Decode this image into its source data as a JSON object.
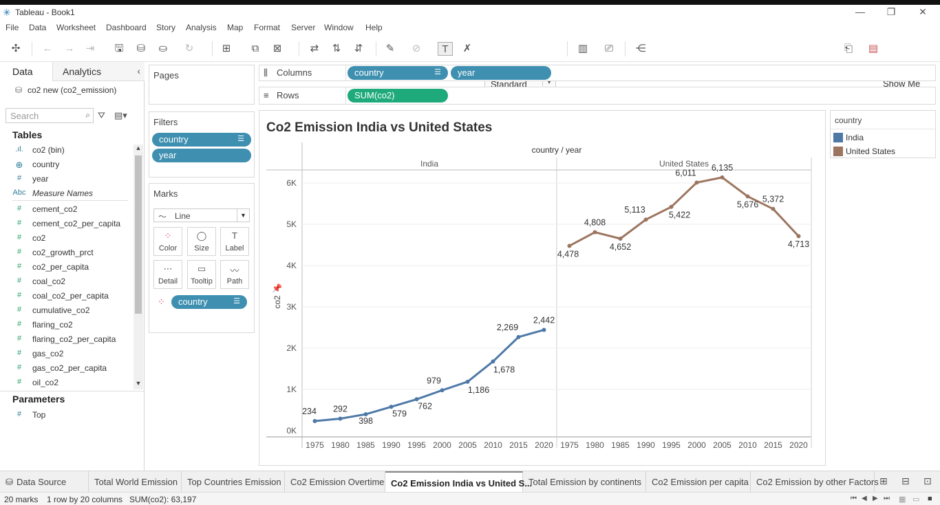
{
  "window": {
    "title": "Tableau - Book1"
  },
  "menu": [
    "File",
    "Data",
    "Worksheet",
    "Dashboard",
    "Story",
    "Analysis",
    "Map",
    "Format",
    "Server",
    "Window",
    "Help"
  ],
  "toolbar": {
    "mark_size_select": "Standard",
    "show_me": "Show Me"
  },
  "left": {
    "tab_data": "Data",
    "tab_analytics": "Analytics",
    "datasource": "co2 new (co2_emission)",
    "search_placeholder": "Search",
    "tables_title": "Tables",
    "fields": [
      {
        "icon": ".ıl.",
        "name": "co2 (bin)"
      },
      {
        "icon": "⊕",
        "name": "country"
      },
      {
        "icon": "#",
        "name": "year"
      },
      {
        "icon": "Abc",
        "name": "Measure Names"
      },
      {
        "icon": "#",
        "name": "cement_co2"
      },
      {
        "icon": "#",
        "name": "cement_co2_per_capita"
      },
      {
        "icon": "#",
        "name": "co2"
      },
      {
        "icon": "#",
        "name": "co2_growth_prct"
      },
      {
        "icon": "#",
        "name": "co2_per_capita"
      },
      {
        "icon": "#",
        "name": "coal_co2"
      },
      {
        "icon": "#",
        "name": "coal_co2_per_capita"
      },
      {
        "icon": "#",
        "name": "cumulative_co2"
      },
      {
        "icon": "#",
        "name": "flaring_co2"
      },
      {
        "icon": "#",
        "name": "flaring_co2_per_capita"
      },
      {
        "icon": "#",
        "name": "gas_co2"
      },
      {
        "icon": "#",
        "name": "gas_co2_per_capita"
      },
      {
        "icon": "#",
        "name": "oil_co2"
      }
    ],
    "parameters_title": "Parameters",
    "parameters": [
      {
        "icon": "#",
        "name": "Top"
      }
    ]
  },
  "pages": {
    "title": "Pages"
  },
  "filters": {
    "title": "Filters",
    "pills": [
      "country",
      "year"
    ]
  },
  "marks": {
    "title": "Marks",
    "type": "Line",
    "buttons": [
      {
        "icon": "⁘",
        "label": "Color"
      },
      {
        "icon": "◯",
        "label": "Size"
      },
      {
        "icon": "T",
        "label": "Label"
      },
      {
        "icon": "⋯",
        "label": "Detail"
      },
      {
        "icon": "▭",
        "label": "Tooltip"
      },
      {
        "icon": "〰",
        "label": "Path"
      }
    ],
    "color_pill": "country"
  },
  "shelves": {
    "columns_label": "Columns",
    "rows_label": "Rows",
    "columns": [
      "country",
      "year"
    ],
    "rows": [
      "SUM(co2)"
    ]
  },
  "sheet": {
    "title": "Co2 Emission India vs United States",
    "header": "country / year"
  },
  "legend": {
    "title": "country",
    "items": [
      {
        "name": "India",
        "color": "#4e79a7"
      },
      {
        "name": "United States",
        "color": "#9c755f"
      }
    ]
  },
  "chart_data": {
    "type": "line",
    "title": "Co2 Emission India vs United States",
    "ylabel": "co2",
    "column_header": "country / year",
    "ylim": [
      0,
      6500
    ],
    "y_ticks": [
      0,
      1000,
      2000,
      3000,
      4000,
      5000,
      6000
    ],
    "y_tick_labels": [
      "0K",
      "1K",
      "2K",
      "3K",
      "4K",
      "5K",
      "6K"
    ],
    "grid": true,
    "panes": [
      {
        "name": "India",
        "color": "#4e79a7",
        "x": [
          1975,
          1980,
          1985,
          1990,
          1995,
          2000,
          2005,
          2010,
          2015,
          2020
        ],
        "values": [
          234,
          292,
          398,
          579,
          762,
          979,
          1186,
          1678,
          2269,
          2442
        ],
        "labels": [
          "234",
          "292",
          "398",
          "579",
          "762",
          "979",
          "1,186",
          "1,678",
          "2,269",
          "2,442"
        ]
      },
      {
        "name": "United States",
        "color": "#9c755f",
        "x": [
          1975,
          1980,
          1985,
          1990,
          1995,
          2000,
          2005,
          2010,
          2015,
          2020
        ],
        "values": [
          4478,
          4808,
          4652,
          5113,
          5422,
          6011,
          6135,
          5676,
          5372,
          4713
        ],
        "labels": [
          "4,478",
          "4,808",
          "4,652",
          "5,113",
          "5,422",
          "6,011",
          "6,135",
          "5,676",
          "5,372",
          "4,713"
        ]
      }
    ]
  },
  "bottom_tabs": [
    {
      "label": "Data Source",
      "active": false
    },
    {
      "label": "Total World Emission",
      "active": false
    },
    {
      "label": "Top Countries Emission",
      "active": false
    },
    {
      "label": "Co2 Emission Overtime",
      "active": false
    },
    {
      "label": "Co2 Emission India vs United S...",
      "active": true
    },
    {
      "label": "Total Emission by continents",
      "active": false
    },
    {
      "label": "Co2 Emission per capita",
      "active": false
    },
    {
      "label": "Co2 Emission by other Factors",
      "active": false
    }
  ],
  "status": {
    "marks": "20 marks",
    "shape": "1 row by 20 columns",
    "sum": "SUM(co2): 63,197"
  }
}
